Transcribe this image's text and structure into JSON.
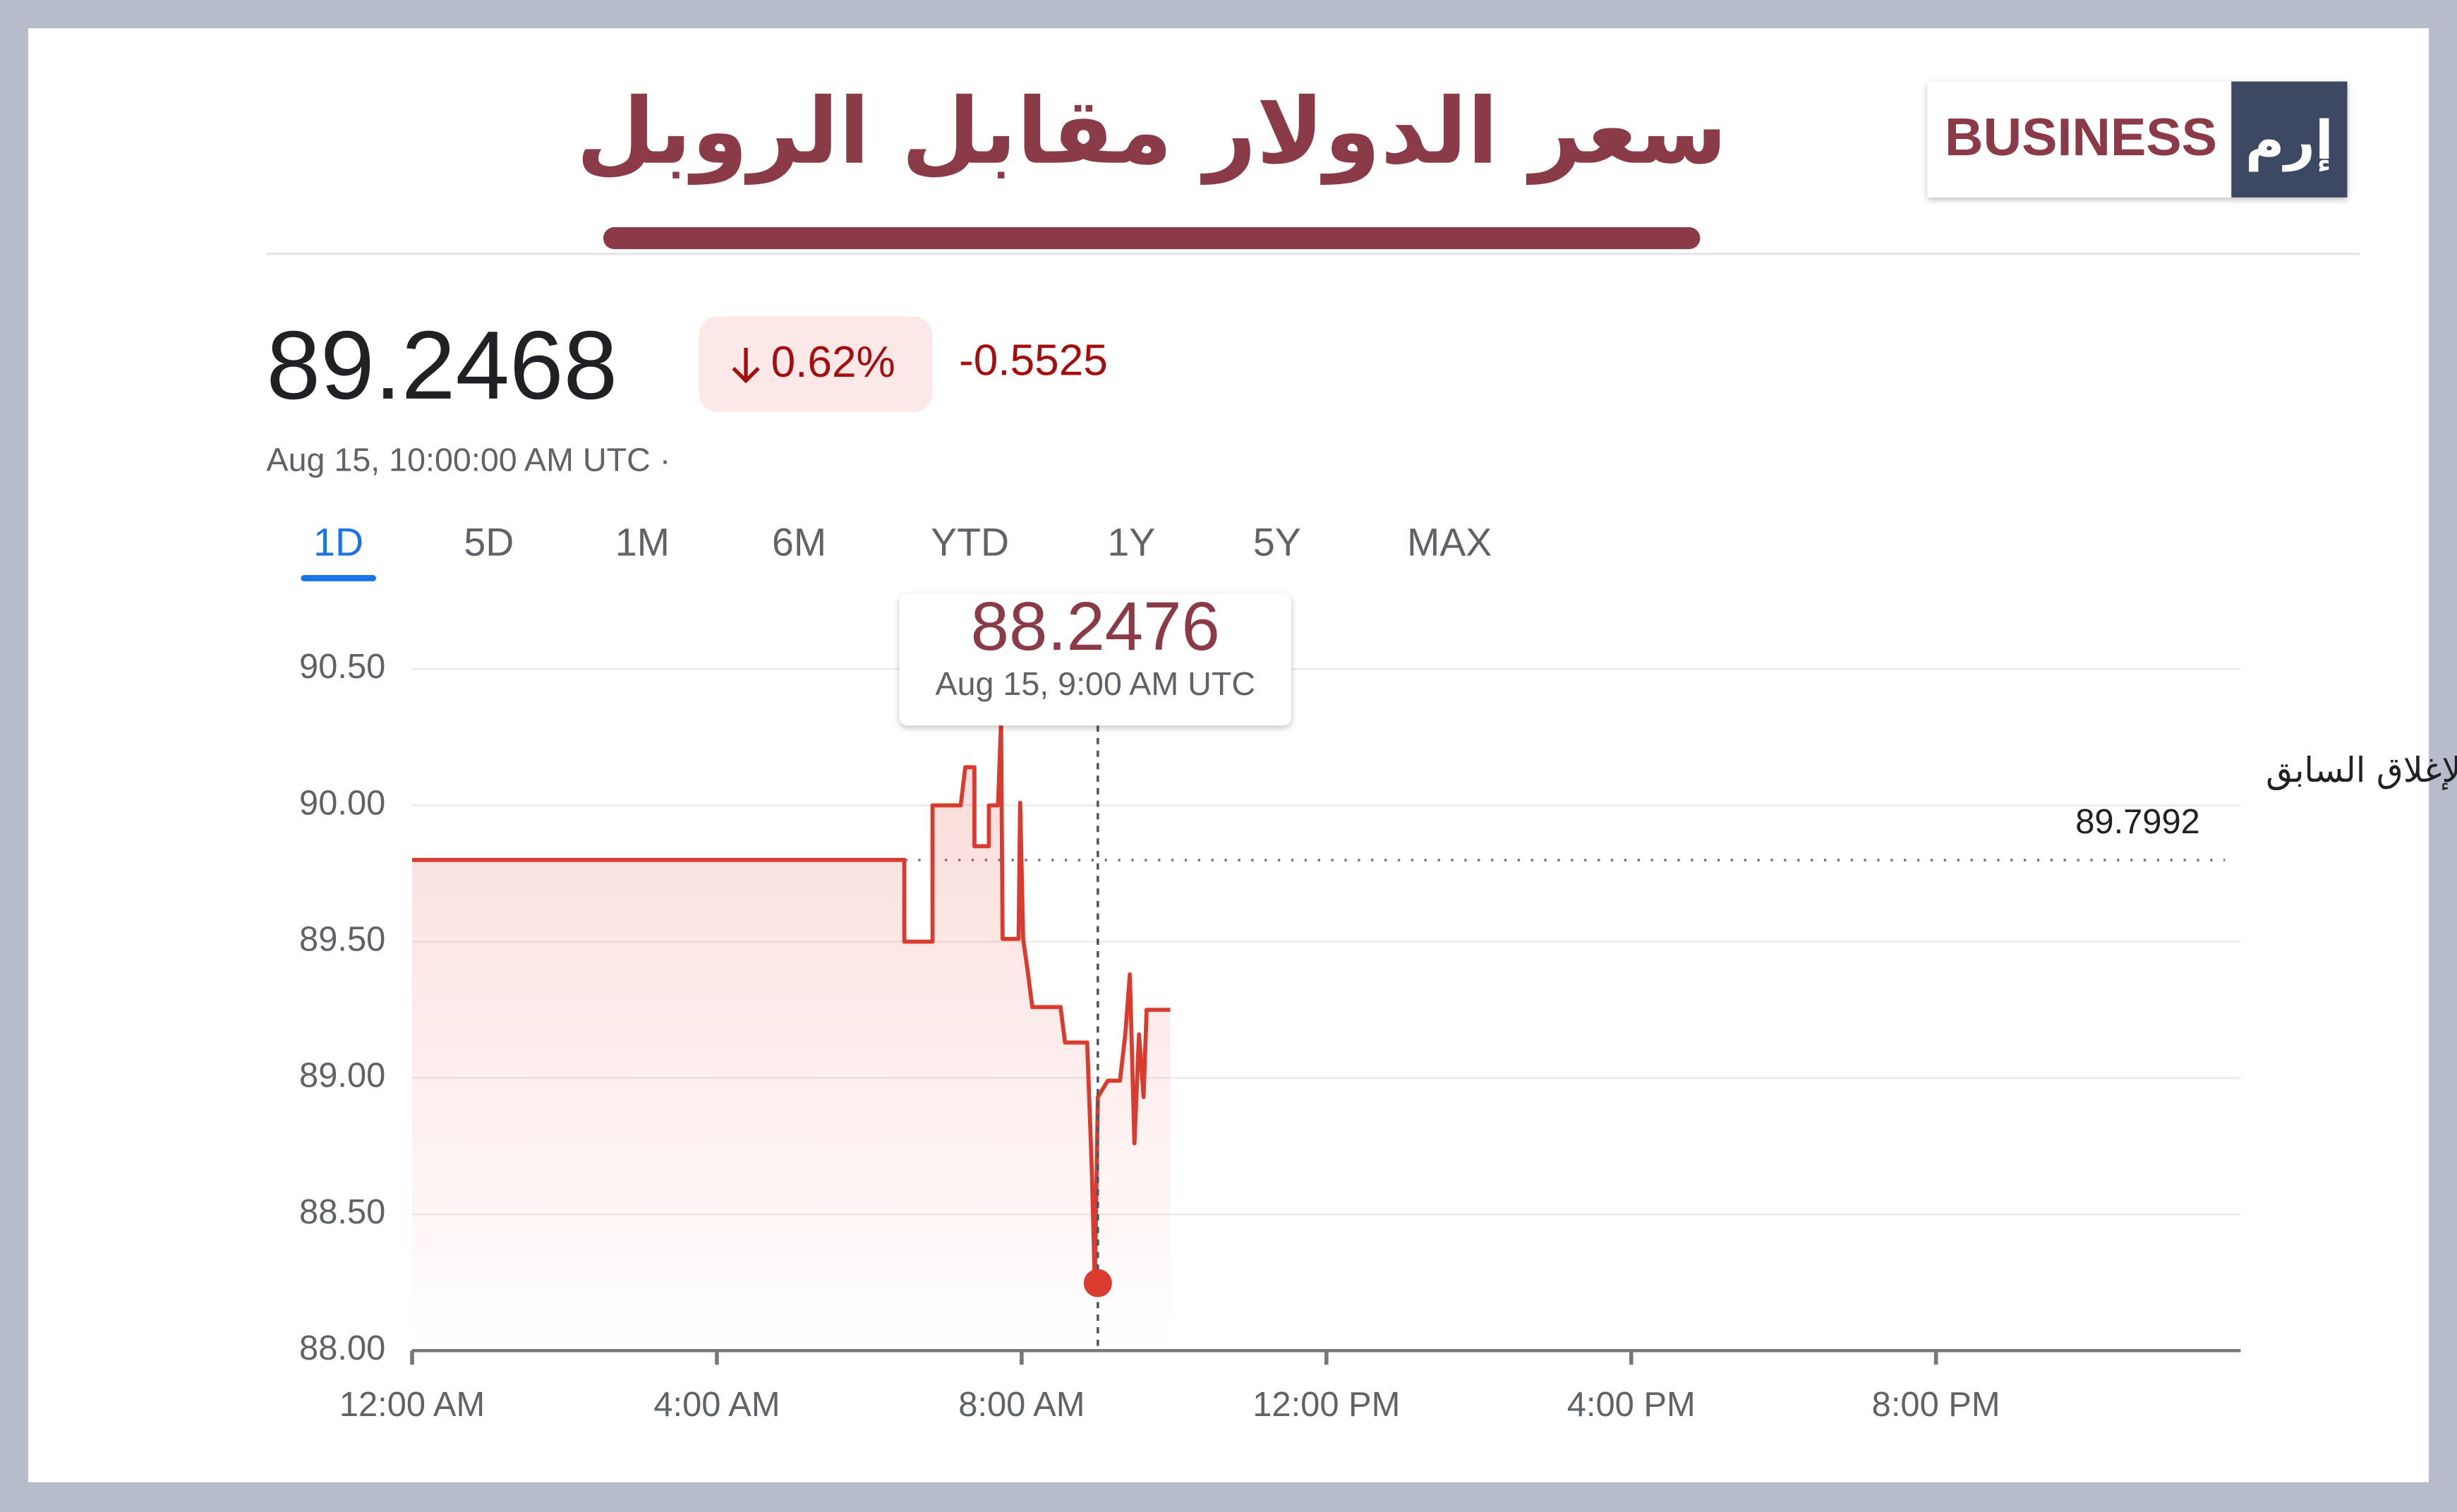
{
  "header": {
    "title": "سعر الدولار مقابل الروبل",
    "logo_text": "BUSINESS",
    "logo_mark": "إرم"
  },
  "quote": {
    "price": "89.2468",
    "change_percent": "0.62%",
    "change": "-0.5525",
    "timestamp": "Aug 15, 10:00:00 AM UTC ·"
  },
  "tabs": [
    "1D",
    "5D",
    "1M",
    "6M",
    "YTD",
    "1Y",
    "5Y",
    "MAX"
  ],
  "chart_data": {
    "type": "line",
    "x": [
      0,
      6.46,
      6.46,
      6.83,
      6.83,
      7.2,
      7.26,
      7.38,
      7.38,
      7.57,
      7.57,
      7.69,
      7.73,
      7.75,
      7.96,
      7.98,
      8.02,
      8.08,
      8.14,
      8.51,
      8.57,
      8.86,
      8.92,
      8.96,
      9.0,
      9.13,
      9.29,
      9.36,
      9.42,
      9.48,
      9.54,
      9.6,
      9.64,
      9.95
    ],
    "series": [
      {
        "color": "#d93b2f",
        "values": [
          89.8,
          89.8,
          89.5,
          89.5,
          90.0,
          90.0,
          90.14,
          90.14,
          89.85,
          89.85,
          90.0,
          90.0,
          90.31,
          89.51,
          89.51,
          90.01,
          89.51,
          89.39,
          89.26,
          89.26,
          89.13,
          89.13,
          88.67,
          88.25,
          88.93,
          88.99,
          88.99,
          89.16,
          89.38,
          88.76,
          89.16,
          88.93,
          89.25,
          89.25
        ]
      }
    ],
    "xlim": [
      0,
      24
    ],
    "xticks": [
      {
        "value": 0,
        "label": "12:00 AM"
      },
      {
        "value": 4,
        "label": "4:00 AM"
      },
      {
        "value": 8,
        "label": "8:00 AM"
      },
      {
        "value": 12,
        "label": "12:00 PM"
      },
      {
        "value": 16,
        "label": "4:00 PM"
      },
      {
        "value": 20,
        "label": "8:00 PM"
      }
    ],
    "ylim": [
      88,
      90.5
    ],
    "yticks": [
      {
        "value": 88,
        "label": "88.00"
      },
      {
        "value": 88.5,
        "label": "88.50"
      },
      {
        "value": 89,
        "label": "89.00"
      },
      {
        "value": 89.5,
        "label": "89.50"
      },
      {
        "value": 90,
        "label": "90.00"
      },
      {
        "value": 90.5,
        "label": "90.50"
      }
    ],
    "grid": true,
    "previous_close": {
      "label": "الإغلاق السابق",
      "value": 89.7992
    },
    "highlight": {
      "x": 9,
      "value": 88.2476,
      "label": "Aug 15, 9:00 AM UTC"
    }
  }
}
